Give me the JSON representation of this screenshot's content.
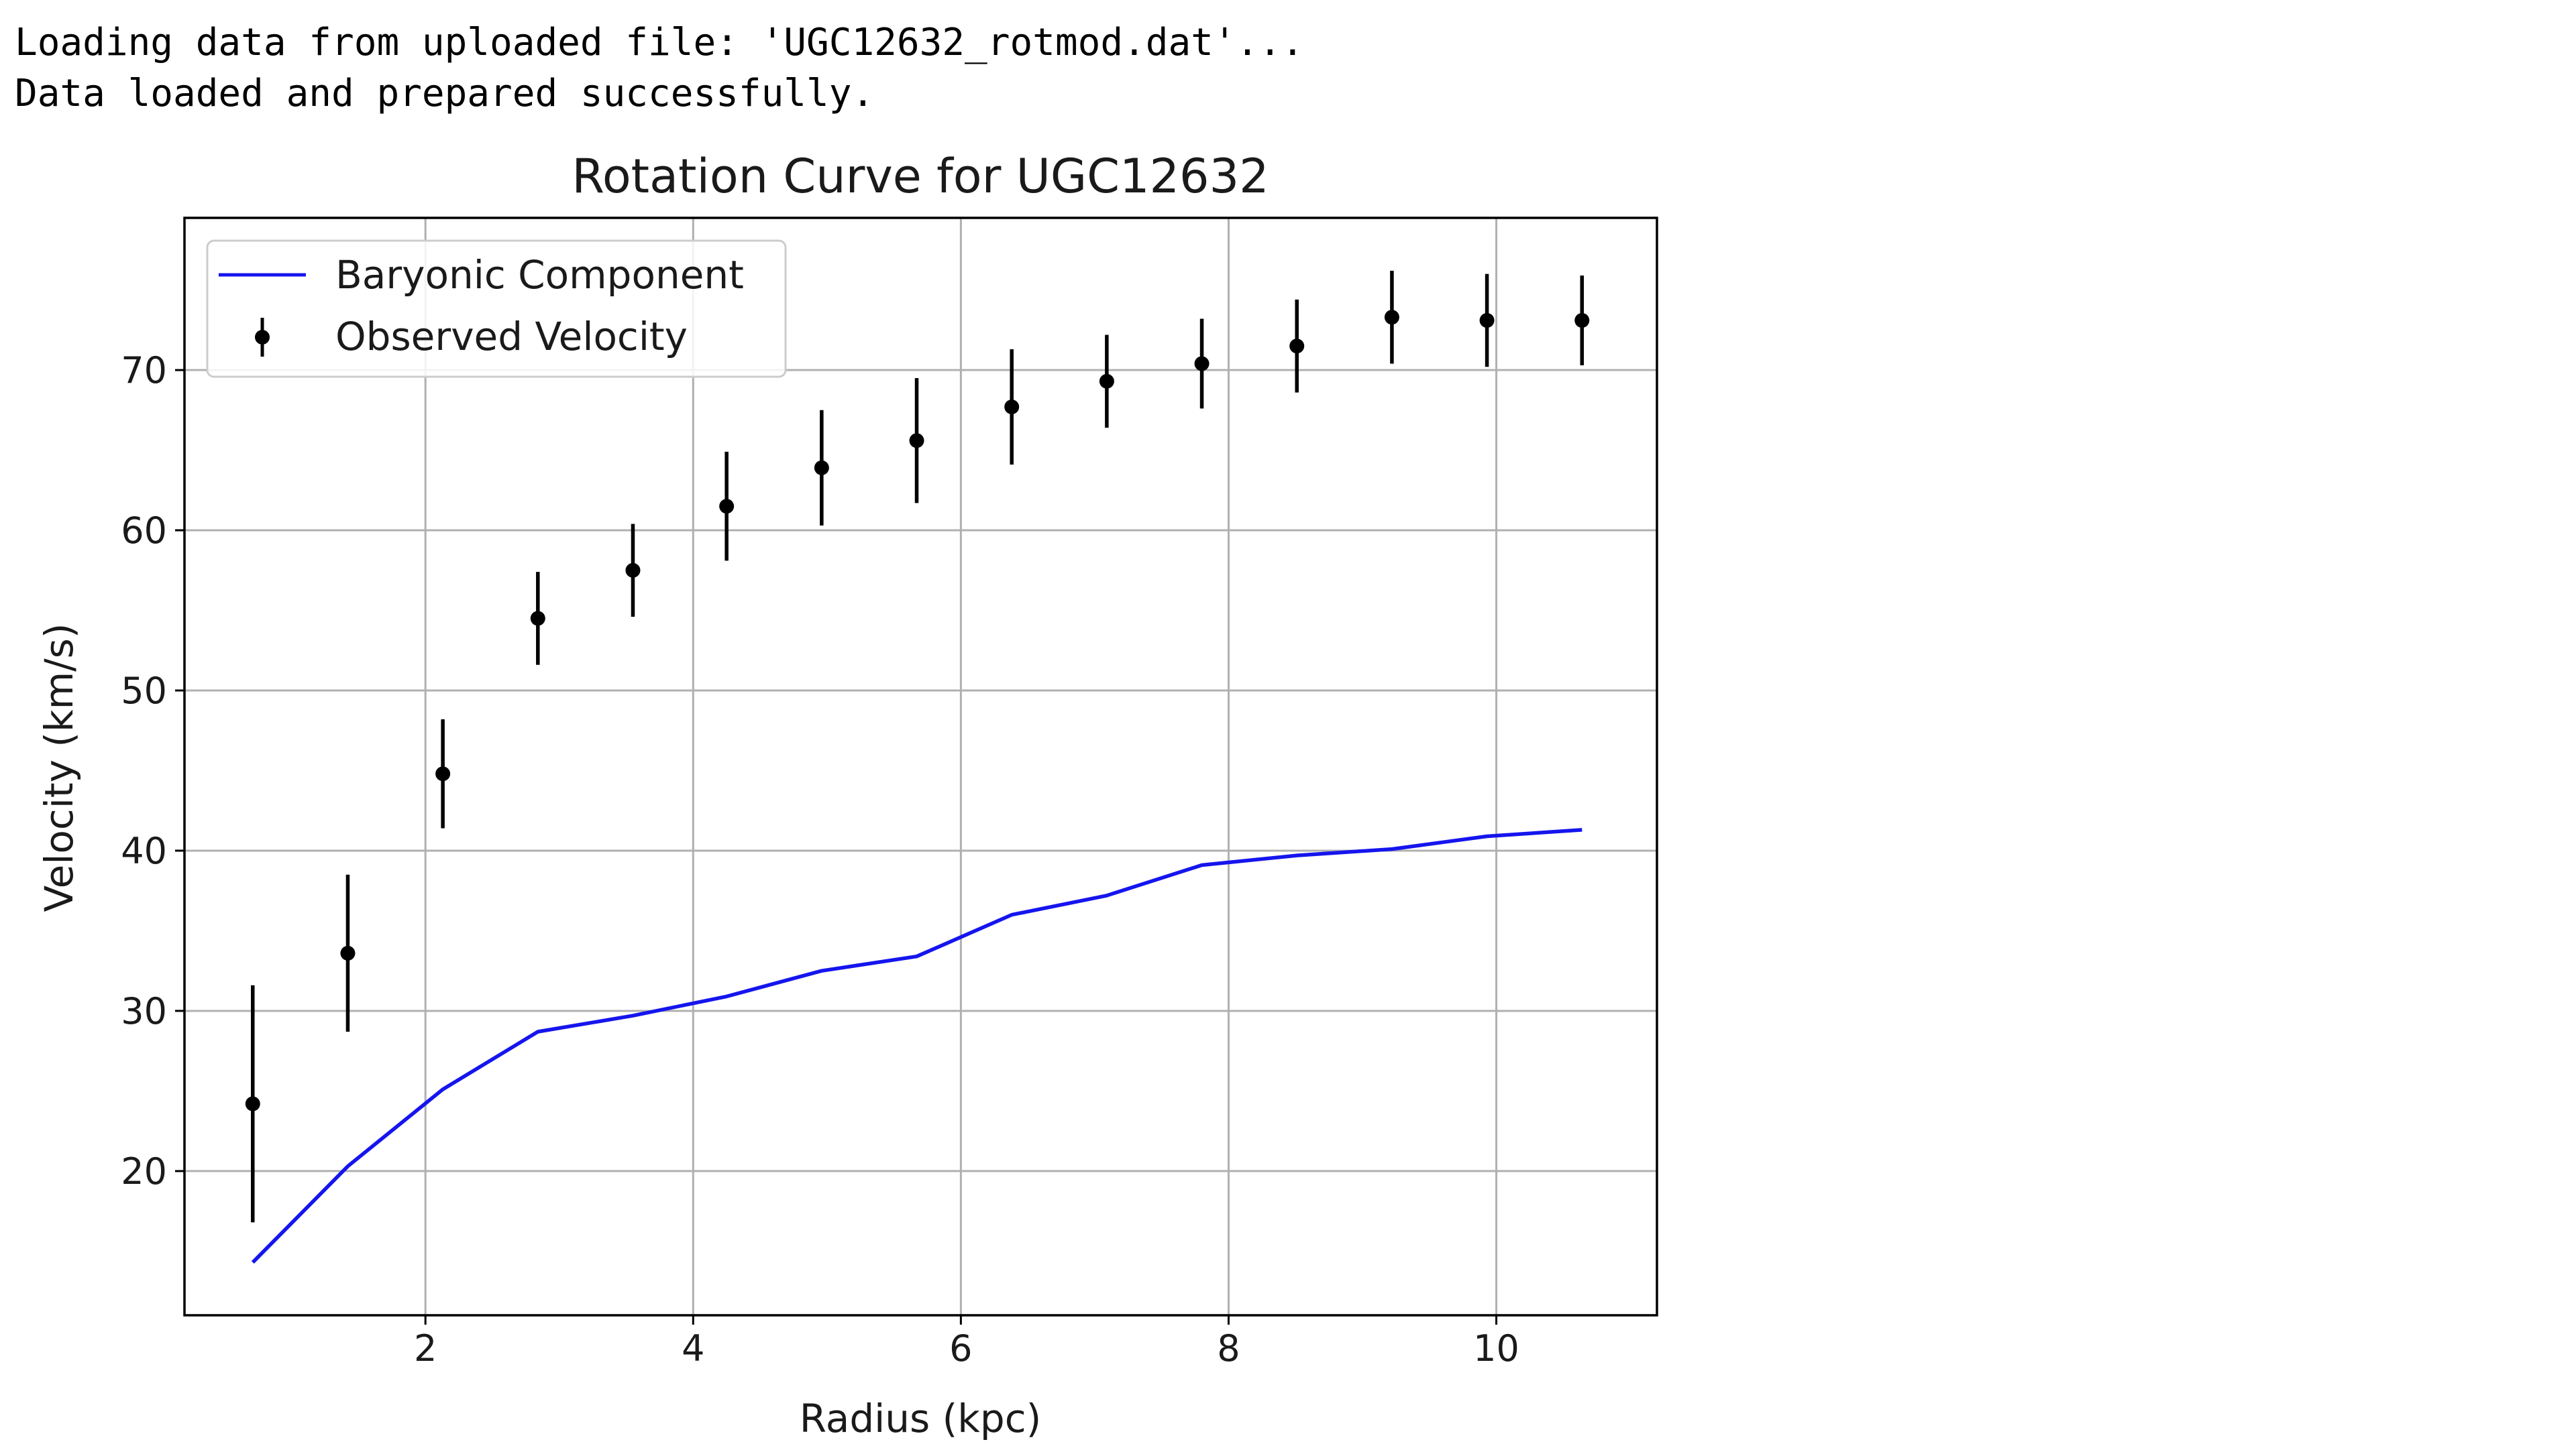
{
  "console": {
    "lines": [
      "Loading data from uploaded file: 'UGC12632_rotmod.dat'...",
      "Data loaded and prepared successfully."
    ]
  },
  "chart_data": {
    "type": "scatter",
    "title": "Rotation Curve for UGC12632",
    "xlabel": "Radius (kpc)",
    "ylabel": "Velocity (km/s)",
    "xlim": [
      0.2,
      11.2
    ],
    "ylim": [
      11,
      79.5
    ],
    "xticks": [
      2,
      4,
      6,
      8,
      10
    ],
    "yticks": [
      20,
      30,
      40,
      50,
      60,
      70
    ],
    "grid": true,
    "legend": {
      "position": "top-left",
      "entries": [
        "Baryonic Component",
        "Observed Velocity"
      ]
    },
    "series": [
      {
        "name": "Baryonic Component",
        "type": "line",
        "color": "#1515ee",
        "x": [
          0.71,
          1.42,
          2.13,
          2.84,
          3.55,
          4.25,
          4.96,
          5.67,
          6.38,
          7.09,
          7.8,
          8.51,
          9.22,
          9.93,
          10.64
        ],
        "y": [
          14.3,
          20.3,
          25.1,
          28.7,
          29.7,
          30.9,
          32.5,
          33.4,
          36.0,
          37.2,
          39.1,
          39.7,
          40.1,
          40.9,
          41.3
        ]
      },
      {
        "name": "Observed Velocity",
        "type": "errorbar",
        "color": "#000000",
        "x": [
          0.71,
          1.42,
          2.13,
          2.84,
          3.55,
          4.25,
          4.96,
          5.67,
          6.38,
          7.09,
          7.8,
          8.51,
          9.22,
          9.93,
          10.64
        ],
        "y": [
          24.2,
          33.6,
          44.8,
          54.5,
          57.5,
          61.5,
          63.9,
          65.6,
          67.7,
          69.3,
          70.4,
          71.5,
          73.3,
          73.1,
          73.1
        ],
        "yerr": [
          7.4,
          4.9,
          3.4,
          2.9,
          2.9,
          3.4,
          3.6,
          3.9,
          3.6,
          2.9,
          2.8,
          2.9,
          2.9,
          2.9,
          2.8
        ]
      }
    ]
  }
}
